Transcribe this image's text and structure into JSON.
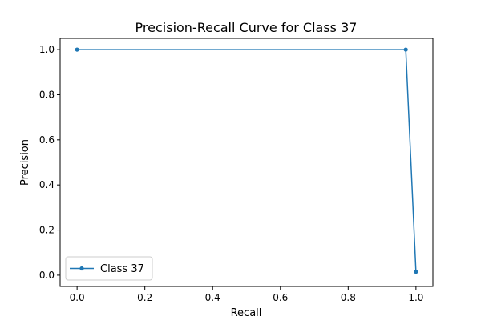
{
  "chart_data": {
    "type": "line",
    "title": "Precision-Recall Curve for Class 37",
    "xlabel": "Recall",
    "ylabel": "Precision",
    "xlim": [
      -0.05,
      1.05
    ],
    "ylim": [
      -0.05,
      1.05
    ],
    "xticks": [
      0.0,
      0.2,
      0.4,
      0.6,
      0.8,
      1.0
    ],
    "yticks": [
      0.0,
      0.2,
      0.4,
      0.6,
      0.8,
      1.0
    ],
    "xtick_labels": [
      "0.0",
      "0.2",
      "0.4",
      "0.6",
      "0.8",
      "1.0"
    ],
    "ytick_labels": [
      "0.0",
      "0.2",
      "0.4",
      "0.6",
      "0.8",
      "1.0"
    ],
    "grid": false,
    "legend_placement": "lower-left",
    "series": [
      {
        "name": "Class 37",
        "color": "#1f77b4",
        "marker": "circle",
        "x": [
          0.0,
          0.97,
          1.0
        ],
        "y": [
          1.0,
          1.0,
          0.015
        ]
      }
    ]
  }
}
